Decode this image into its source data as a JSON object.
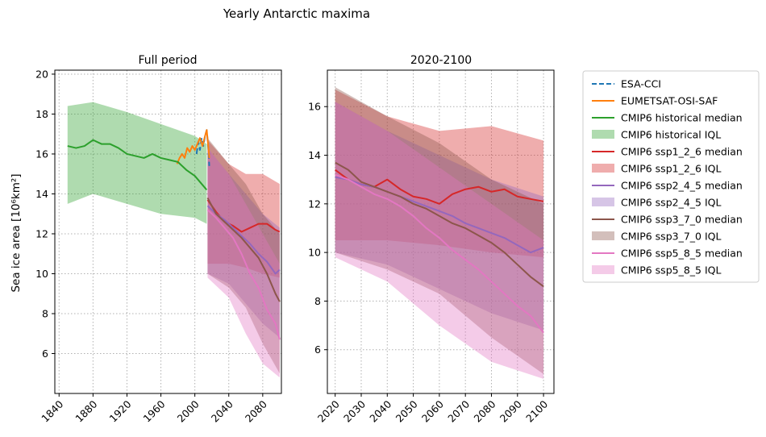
{
  "figure": {
    "title": "Yearly Antarctic maxima"
  },
  "chart_data": [
    {
      "type": "line",
      "title": "Full period",
      "xlabel": "",
      "ylabel": "Sea ice area [10⁶km²]",
      "xlim": [
        1835,
        2102
      ],
      "ylim": [
        4,
        20.2
      ],
      "xticks": [
        "1840",
        "1880",
        "1920",
        "1960",
        "2000",
        "2040",
        "2080"
      ],
      "yticks": [
        "6",
        "8",
        "10",
        "12",
        "14",
        "16",
        "18",
        "20"
      ],
      "grid": true,
      "series": [
        {
          "name": "ESA-CCI",
          "style": "dashed",
          "color": "#1f77b4",
          "x": [
            2002,
            2004,
            2006,
            2008,
            2010,
            2012,
            2014,
            2016,
            2017
          ],
          "y": [
            16.0,
            16.6,
            16.2,
            16.8,
            16.4,
            16.9,
            17.2,
            16.2,
            15.4
          ]
        },
        {
          "name": "EUMETSAT-OSI-SAF",
          "style": "solid",
          "color": "#ff7f0e",
          "x": [
            1979,
            1982,
            1985,
            1988,
            1991,
            1994,
            1997,
            2000,
            2003,
            2006,
            2009,
            2012,
            2014,
            2016,
            2017
          ],
          "y": [
            15.5,
            15.8,
            16.0,
            15.8,
            16.3,
            16.1,
            16.4,
            16.2,
            16.5,
            16.8,
            16.4,
            16.9,
            17.2,
            16.3,
            15.8
          ]
        },
        {
          "name": "CMIP6 historical median",
          "style": "solid",
          "color": "#2ca02c",
          "x": [
            1850,
            1860,
            1870,
            1880,
            1890,
            1900,
            1910,
            1920,
            1930,
            1940,
            1950,
            1960,
            1970,
            1980,
            1990,
            2000,
            2010,
            2014
          ],
          "y": [
            16.4,
            16.3,
            16.4,
            16.7,
            16.5,
            16.5,
            16.3,
            16.0,
            15.9,
            15.8,
            16.0,
            15.8,
            15.7,
            15.6,
            15.2,
            14.9,
            14.4,
            14.2
          ]
        },
        {
          "name": "CMIP6 historical IQL",
          "type": "band",
          "color": "#2ca02c",
          "x": [
            1850,
            1880,
            1920,
            1960,
            2000,
            2014
          ],
          "low": [
            13.5,
            14.0,
            13.5,
            13.0,
            12.8,
            12.5
          ],
          "high": [
            18.4,
            18.6,
            18.1,
            17.5,
            16.9,
            16.5
          ]
        },
        {
          "name": "CMIP6 ssp1_2_6 median",
          "style": "solid",
          "color": "#d62728",
          "x": [
            2015,
            2025,
            2035,
            2045,
            2055,
            2065,
            2075,
            2085,
            2095,
            2100
          ],
          "y": [
            13.7,
            13.1,
            12.6,
            12.4,
            12.1,
            12.3,
            12.5,
            12.5,
            12.2,
            12.1
          ]
        },
        {
          "name": "CMIP6 ssp1_2_6 IQL",
          "type": "band",
          "color": "#d62728",
          "x": [
            2015,
            2040,
            2060,
            2080,
            2100
          ],
          "low": [
            10.5,
            10.5,
            10.3,
            10.0,
            9.8
          ],
          "high": [
            16.7,
            15.5,
            15.0,
            15.0,
            14.5
          ]
        },
        {
          "name": "CMIP6 ssp2_4_5 median",
          "style": "solid",
          "color": "#9467bd",
          "x": [
            2015,
            2025,
            2035,
            2045,
            2055,
            2065,
            2075,
            2085,
            2095,
            2100
          ],
          "y": [
            13.4,
            13.0,
            12.7,
            12.3,
            11.9,
            11.5,
            11.0,
            10.6,
            10.0,
            10.2
          ]
        },
        {
          "name": "CMIP6 ssp2_4_5 IQL",
          "type": "band",
          "color": "#9467bd",
          "x": [
            2015,
            2040,
            2060,
            2080,
            2100
          ],
          "low": [
            10.0,
            9.5,
            8.5,
            7.5,
            6.8
          ],
          "high": [
            16.3,
            15.0,
            14.0,
            13.0,
            12.3
          ]
        },
        {
          "name": "CMIP6 ssp3_7_0 median",
          "style": "solid",
          "color": "#8c564b",
          "x": [
            2015,
            2025,
            2035,
            2045,
            2055,
            2065,
            2075,
            2085,
            2095,
            2100
          ],
          "y": [
            13.8,
            13.0,
            12.6,
            12.2,
            11.8,
            11.3,
            10.8,
            10.0,
            9.0,
            8.6
          ]
        },
        {
          "name": "CMIP6 ssp3_7_0 IQL",
          "type": "band",
          "color": "#8c564b",
          "x": [
            2015,
            2040,
            2060,
            2080,
            2100
          ],
          "low": [
            10.0,
            9.3,
            8.3,
            6.5,
            5.0
          ],
          "high": [
            16.8,
            15.5,
            14.5,
            13.0,
            12.0
          ]
        },
        {
          "name": "CMIP6 ssp5_8_5 median",
          "style": "solid",
          "color": "#e377c2",
          "x": [
            2015,
            2025,
            2035,
            2045,
            2055,
            2065,
            2075,
            2085,
            2095,
            2100
          ],
          "y": [
            13.2,
            12.8,
            12.3,
            11.8,
            11.0,
            10.0,
            9.3,
            8.2,
            7.5,
            6.7
          ]
        },
        {
          "name": "CMIP6 ssp5_8_5 IQL",
          "type": "band",
          "color": "#e377c2",
          "x": [
            2015,
            2040,
            2060,
            2080,
            2100
          ],
          "low": [
            9.8,
            8.8,
            7.0,
            5.5,
            4.8
          ],
          "high": [
            16.3,
            15.0,
            13.5,
            12.0,
            10.5
          ]
        }
      ]
    },
    {
      "type": "line",
      "title": "2020-2100",
      "xlabel": "",
      "ylabel": "",
      "xlim": [
        2017,
        2104
      ],
      "ylim": [
        4.2,
        17.5
      ],
      "xticks": [
        "2020",
        "2030",
        "2040",
        "2050",
        "2060",
        "2070",
        "2080",
        "2090",
        "2100"
      ],
      "yticks": [
        "6",
        "8",
        "10",
        "12",
        "14",
        "16"
      ],
      "grid": true,
      "series": [
        {
          "name": "CMIP6 ssp1_2_6 median",
          "style": "solid",
          "color": "#d62728",
          "x": [
            2020,
            2025,
            2030,
            2035,
            2040,
            2045,
            2050,
            2055,
            2060,
            2065,
            2070,
            2075,
            2080,
            2085,
            2090,
            2095,
            2100
          ],
          "y": [
            13.4,
            13.0,
            12.8,
            12.7,
            13.0,
            12.6,
            12.3,
            12.2,
            12.0,
            12.4,
            12.6,
            12.7,
            12.5,
            12.6,
            12.3,
            12.2,
            12.1
          ]
        },
        {
          "name": "CMIP6 ssp1_2_6 IQL",
          "type": "band",
          "color": "#d62728",
          "x": [
            2020,
            2040,
            2060,
            2080,
            2100
          ],
          "low": [
            10.5,
            10.5,
            10.3,
            10.0,
            9.8
          ],
          "high": [
            16.7,
            15.6,
            15.0,
            15.2,
            14.6
          ]
        },
        {
          "name": "CMIP6 ssp2_4_5 median",
          "style": "solid",
          "color": "#9467bd",
          "x": [
            2020,
            2025,
            2030,
            2035,
            2040,
            2045,
            2050,
            2055,
            2060,
            2065,
            2070,
            2075,
            2080,
            2085,
            2090,
            2095,
            2100
          ],
          "y": [
            13.1,
            13.0,
            12.8,
            12.7,
            12.5,
            12.3,
            12.1,
            11.9,
            11.7,
            11.5,
            11.2,
            11.0,
            10.8,
            10.6,
            10.3,
            10.0,
            10.2
          ]
        },
        {
          "name": "CMIP6 ssp2_4_5 IQL",
          "type": "band",
          "color": "#9467bd",
          "x": [
            2020,
            2040,
            2060,
            2080,
            2100
          ],
          "low": [
            10.0,
            9.5,
            8.5,
            7.5,
            6.8
          ],
          "high": [
            16.2,
            15.0,
            14.0,
            13.0,
            12.3
          ]
        },
        {
          "name": "CMIP6 ssp3_7_0 median",
          "style": "solid",
          "color": "#8c564b",
          "x": [
            2020,
            2025,
            2030,
            2035,
            2040,
            2045,
            2050,
            2055,
            2060,
            2065,
            2070,
            2075,
            2080,
            2085,
            2090,
            2095,
            2100
          ],
          "y": [
            13.7,
            13.4,
            12.9,
            12.7,
            12.5,
            12.3,
            12.0,
            11.8,
            11.5,
            11.2,
            11.0,
            10.7,
            10.4,
            10.0,
            9.5,
            9.0,
            8.6
          ]
        },
        {
          "name": "CMIP6 ssp3_7_0 IQL",
          "type": "band",
          "color": "#8c564b",
          "x": [
            2020,
            2040,
            2060,
            2080,
            2100
          ],
          "low": [
            10.0,
            9.3,
            8.3,
            6.5,
            5.0
          ],
          "high": [
            16.8,
            15.6,
            14.5,
            13.0,
            12.0
          ]
        },
        {
          "name": "CMIP6 ssp5_8_5 median",
          "style": "solid",
          "color": "#e377c2",
          "x": [
            2020,
            2025,
            2030,
            2035,
            2040,
            2045,
            2050,
            2055,
            2060,
            2065,
            2070,
            2075,
            2080,
            2085,
            2090,
            2095,
            2100
          ],
          "y": [
            13.2,
            13.0,
            12.7,
            12.4,
            12.2,
            11.9,
            11.5,
            11.0,
            10.6,
            10.1,
            9.7,
            9.3,
            8.8,
            8.3,
            7.8,
            7.4,
            6.7
          ]
        },
        {
          "name": "CMIP6 ssp5_8_5 IQL",
          "type": "band",
          "color": "#e377c2",
          "x": [
            2020,
            2040,
            2060,
            2080,
            2100
          ],
          "low": [
            9.8,
            8.8,
            7.0,
            5.5,
            4.8
          ],
          "high": [
            16.2,
            15.0,
            13.5,
            12.0,
            10.5
          ]
        }
      ]
    }
  ],
  "legend": {
    "placement": "right",
    "entries": [
      {
        "label": "ESA-CCI",
        "kind": "dashed",
        "color": "#1f77b4"
      },
      {
        "label": "EUMETSAT-OSI-SAF",
        "kind": "line",
        "color": "#ff7f0e"
      },
      {
        "label": "CMIP6 historical median",
        "kind": "line",
        "color": "#2ca02c"
      },
      {
        "label": "CMIP6 historical IQL",
        "kind": "patch",
        "color": "#2ca02c"
      },
      {
        "label": "CMIP6 ssp1_2_6 median",
        "kind": "line",
        "color": "#d62728"
      },
      {
        "label": "CMIP6 ssp1_2_6 IQL",
        "kind": "patch",
        "color": "#d62728"
      },
      {
        "label": "CMIP6 ssp2_4_5 median",
        "kind": "line",
        "color": "#9467bd"
      },
      {
        "label": "CMIP6 ssp2_4_5 IQL",
        "kind": "patch",
        "color": "#9467bd"
      },
      {
        "label": "CMIP6 ssp3_7_0 median",
        "kind": "line",
        "color": "#8c564b"
      },
      {
        "label": "CMIP6 ssp3_7_0 IQL",
        "kind": "patch",
        "color": "#8c564b"
      },
      {
        "label": "CMIP6 ssp5_8_5 median",
        "kind": "line",
        "color": "#e377c2"
      },
      {
        "label": "CMIP6 ssp5_8_5 IQL",
        "kind": "patch",
        "color": "#e377c2"
      }
    ]
  }
}
